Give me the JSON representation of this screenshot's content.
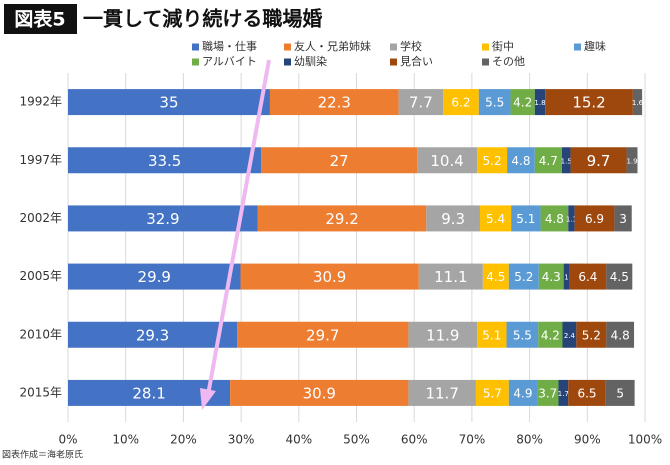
{
  "chart_data": {
    "type": "stacked-bar-horizontal",
    "title_badge": "図表5",
    "title": "一貫して減り続ける職場婚",
    "source": "図表作成＝海老原氏",
    "categories": [
      "1992年",
      "1997年",
      "2002年",
      "2005年",
      "2010年",
      "2015年"
    ],
    "series": [
      {
        "name": "職場・仕事",
        "color": "#4472c4",
        "values": [
          35,
          33.5,
          32.9,
          29.9,
          29.3,
          28.1
        ]
      },
      {
        "name": "友人・兄弟姉妹",
        "color": "#ed7d31",
        "values": [
          22.3,
          27,
          29.2,
          30.9,
          29.7,
          30.9
        ]
      },
      {
        "name": "学校",
        "color": "#a5a5a5",
        "values": [
          7.7,
          10.4,
          9.3,
          11.1,
          11.9,
          11.7
        ]
      },
      {
        "name": "街中",
        "color": "#ffc000",
        "values": [
          6.2,
          5.2,
          5.4,
          4.5,
          5.1,
          5.7
        ]
      },
      {
        "name": "趣味",
        "color": "#5b9bd5",
        "values": [
          5.5,
          4.8,
          5.1,
          5.2,
          5.5,
          4.9
        ]
      },
      {
        "name": "アルバイト",
        "color": "#70ad47",
        "values": [
          4.2,
          4.7,
          4.8,
          4.3,
          4.2,
          3.7
        ]
      },
      {
        "name": "幼馴染",
        "color": "#264478",
        "values": [
          1.8,
          1.5,
          1.1,
          1,
          2.4,
          1.7
        ]
      },
      {
        "name": "見合い",
        "color": "#9e480e",
        "values": [
          15.2,
          9.7,
          6.9,
          6.4,
          5.2,
          6.5
        ]
      },
      {
        "name": "その他",
        "color": "#636363",
        "values": [
          1.6,
          1.9,
          3,
          4.5,
          4.8,
          5
        ]
      }
    ],
    "xlim": [
      0,
      100
    ],
    "xticks": [
      {
        "value": 0,
        "label": "0%"
      },
      {
        "value": 10,
        "label": "10%"
      },
      {
        "value": 20,
        "label": "20%"
      },
      {
        "value": 30,
        "label": "30%"
      },
      {
        "value": 40,
        "label": "40%"
      },
      {
        "value": 50,
        "label": "50%"
      },
      {
        "value": 60,
        "label": "60%"
      },
      {
        "value": 70,
        "label": "70%"
      },
      {
        "value": 80,
        "label": "80%"
      },
      {
        "value": 90,
        "label": "90%"
      },
      {
        "value": 100,
        "label": "100%"
      }
    ],
    "grid": true
  }
}
